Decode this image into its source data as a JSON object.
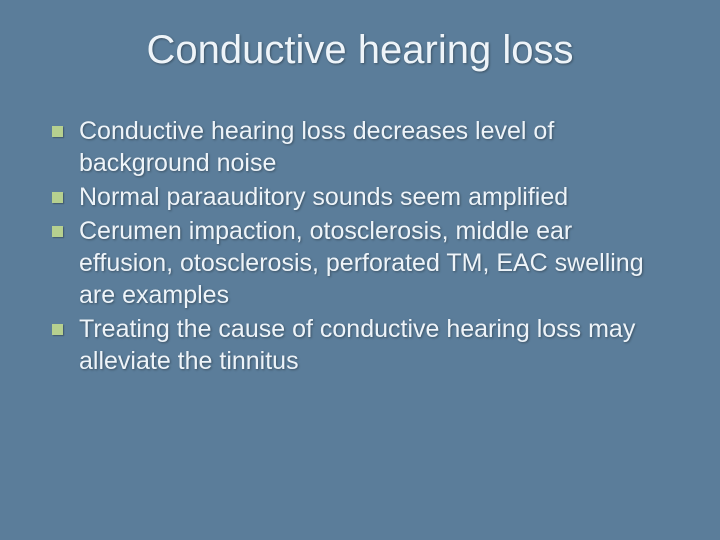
{
  "slide": {
    "background_color": "#5b7d9a",
    "text_color": "#eef4f9",
    "title": "Conductive hearing loss",
    "title_fontsize": 40,
    "body_fontsize": 25,
    "bullet_color": "#b6d08f",
    "bullet_size": 11,
    "items": [
      {
        "text": "Conductive hearing loss decreases level of background noise"
      },
      {
        "text": "Normal paraauditory sounds seem amplified"
      },
      {
        "text": "Cerumen impaction, otosclerosis, middle ear effusion, otosclerosis, perforated TM, EAC swelling are examples"
      },
      {
        "text": "Treating the cause of conductive hearing loss may alleviate the tinnitus"
      }
    ]
  }
}
